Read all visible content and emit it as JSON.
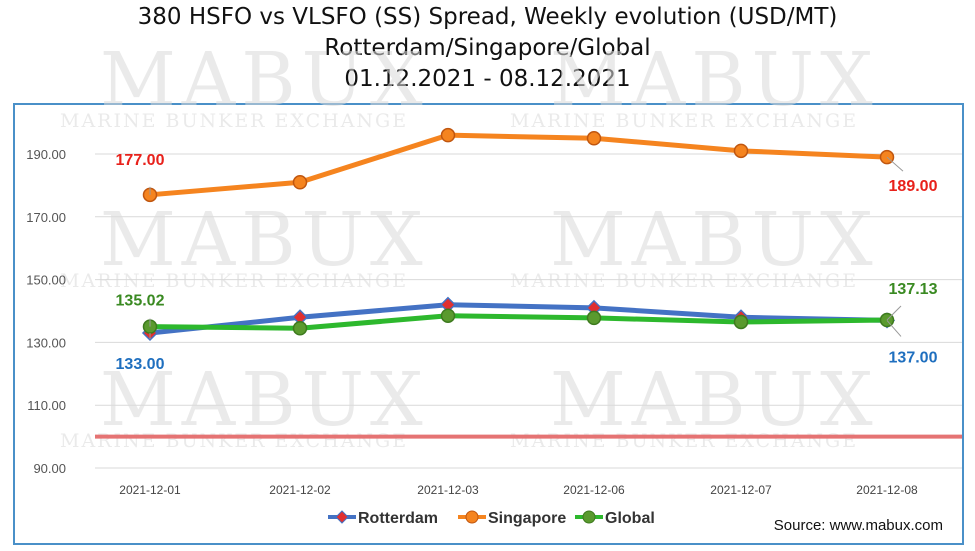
{
  "chart_data": {
    "type": "line",
    "title_lines": [
      "380 HSFO vs VLSFO (SS) Spread, Weekly evolution (USD/MT)",
      "Rotterdam/Singapore/Global",
      "01.12.2021 - 08.12.2021"
    ],
    "categories": [
      "2021-12-01",
      "2021-12-02",
      "2021-12-03",
      "2021-12-06",
      "2021-12-07",
      "2021-12-08"
    ],
    "ylim": [
      90,
      210
    ],
    "yticks": [
      "90.00",
      "110.00",
      "130.00",
      "150.00",
      "170.00",
      "190.00"
    ],
    "grid": true,
    "legend_position": "bottom-center",
    "reference_line": {
      "y": 100,
      "color": "#e57373"
    },
    "series": [
      {
        "name": "Rotterdam",
        "color": "#4472c4",
        "marker_fill": "#e03030",
        "marker": "diamond",
        "values": [
          133.0,
          138.0,
          142.0,
          141.0,
          138.0,
          137.0
        ],
        "labels": [
          {
            "index": 0,
            "text": "133.00",
            "color": "#1f6fbf"
          },
          {
            "index": 5,
            "text": "137.00",
            "color": "#1f6fbf"
          }
        ]
      },
      {
        "name": "Singapore",
        "color": "#f5841f",
        "marker_fill": "#f5841f",
        "marker": "circle",
        "values": [
          177.0,
          181.0,
          196.0,
          195.0,
          191.0,
          189.0
        ],
        "labels": [
          {
            "index": 0,
            "text": "177.00",
            "color": "#e8211b"
          },
          {
            "index": 5,
            "text": "189.00",
            "color": "#e8211b"
          }
        ]
      },
      {
        "name": "Global",
        "color": "#2db82d",
        "marker_fill": "#5a9a2e",
        "marker": "circle",
        "values": [
          135.02,
          134.5,
          138.5,
          137.8,
          136.5,
          137.13
        ],
        "labels": [
          {
            "index": 0,
            "text": "135.02",
            "color": "#3a8a22"
          },
          {
            "index": 5,
            "text": "137.13",
            "color": "#3a8a22"
          }
        ]
      }
    ],
    "source": "Source: www.mabux.com"
  },
  "watermark": {
    "main": "MABUX",
    "sub": "MARINE BUNKER EXCHANGE"
  }
}
